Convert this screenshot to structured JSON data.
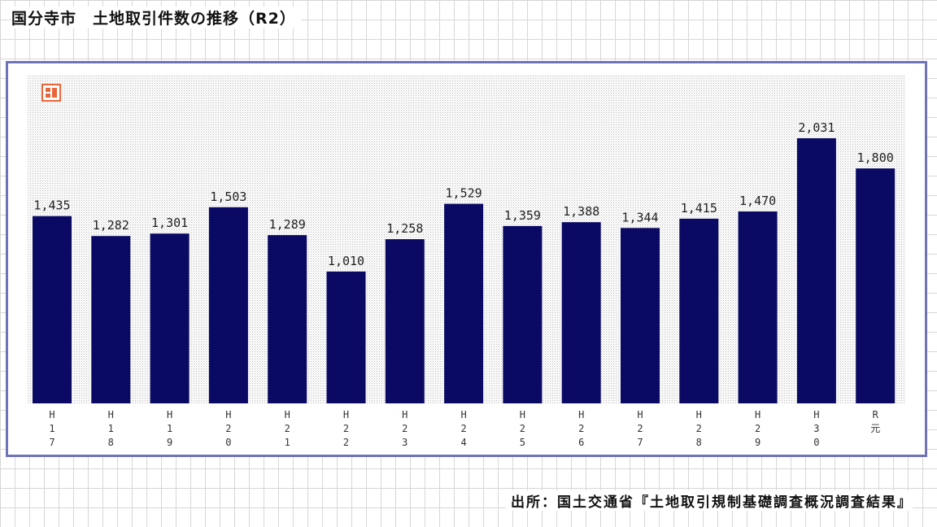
{
  "title": "国分寺市　土地取引件数の推移（R2）",
  "source": "出所：国土交通省『土地取引規制基礎調査概況調査結果』",
  "badge_icon": "chart-badge-icon",
  "colors": {
    "bar": "#0a0a64",
    "frame": "#6f73b8",
    "badge": "#e8663a",
    "plot_dots": "#c4c4c4"
  },
  "chart_data": {
    "type": "bar",
    "title": "国分寺市　土地取引件数の推移（R2）",
    "categories": [
      "H17",
      "H18",
      "H19",
      "H20",
      "H21",
      "H22",
      "H23",
      "H24",
      "H25",
      "H26",
      "H27",
      "H28",
      "H29",
      "H30",
      "R元"
    ],
    "tick_labels": [
      [
        "H",
        "1",
        "7"
      ],
      [
        "H",
        "1",
        "8"
      ],
      [
        "H",
        "1",
        "9"
      ],
      [
        "H",
        "2",
        "0"
      ],
      [
        "H",
        "2",
        "1"
      ],
      [
        "H",
        "2",
        "2"
      ],
      [
        "H",
        "2",
        "3"
      ],
      [
        "H",
        "2",
        "4"
      ],
      [
        "H",
        "2",
        "5"
      ],
      [
        "H",
        "2",
        "6"
      ],
      [
        "H",
        "2",
        "7"
      ],
      [
        "H",
        "2",
        "8"
      ],
      [
        "H",
        "2",
        "9"
      ],
      [
        "H",
        "3",
        "0"
      ],
      [
        "R",
        "元"
      ]
    ],
    "values": [
      1435,
      1282,
      1301,
      1503,
      1289,
      1010,
      1258,
      1529,
      1359,
      1388,
      1344,
      1415,
      1470,
      2031,
      1800
    ],
    "data_labels": [
      "1,435",
      "1,282",
      "1,301",
      "1,503",
      "1,289",
      "1,010",
      "1,258",
      "1,529",
      "1,359",
      "1,388",
      "1,344",
      "1,415",
      "1,470",
      "2,031",
      "1,800"
    ],
    "xlabel": "",
    "ylabel": "",
    "ylim": [
      0,
      2500
    ],
    "grid": false,
    "legend": "none"
  }
}
